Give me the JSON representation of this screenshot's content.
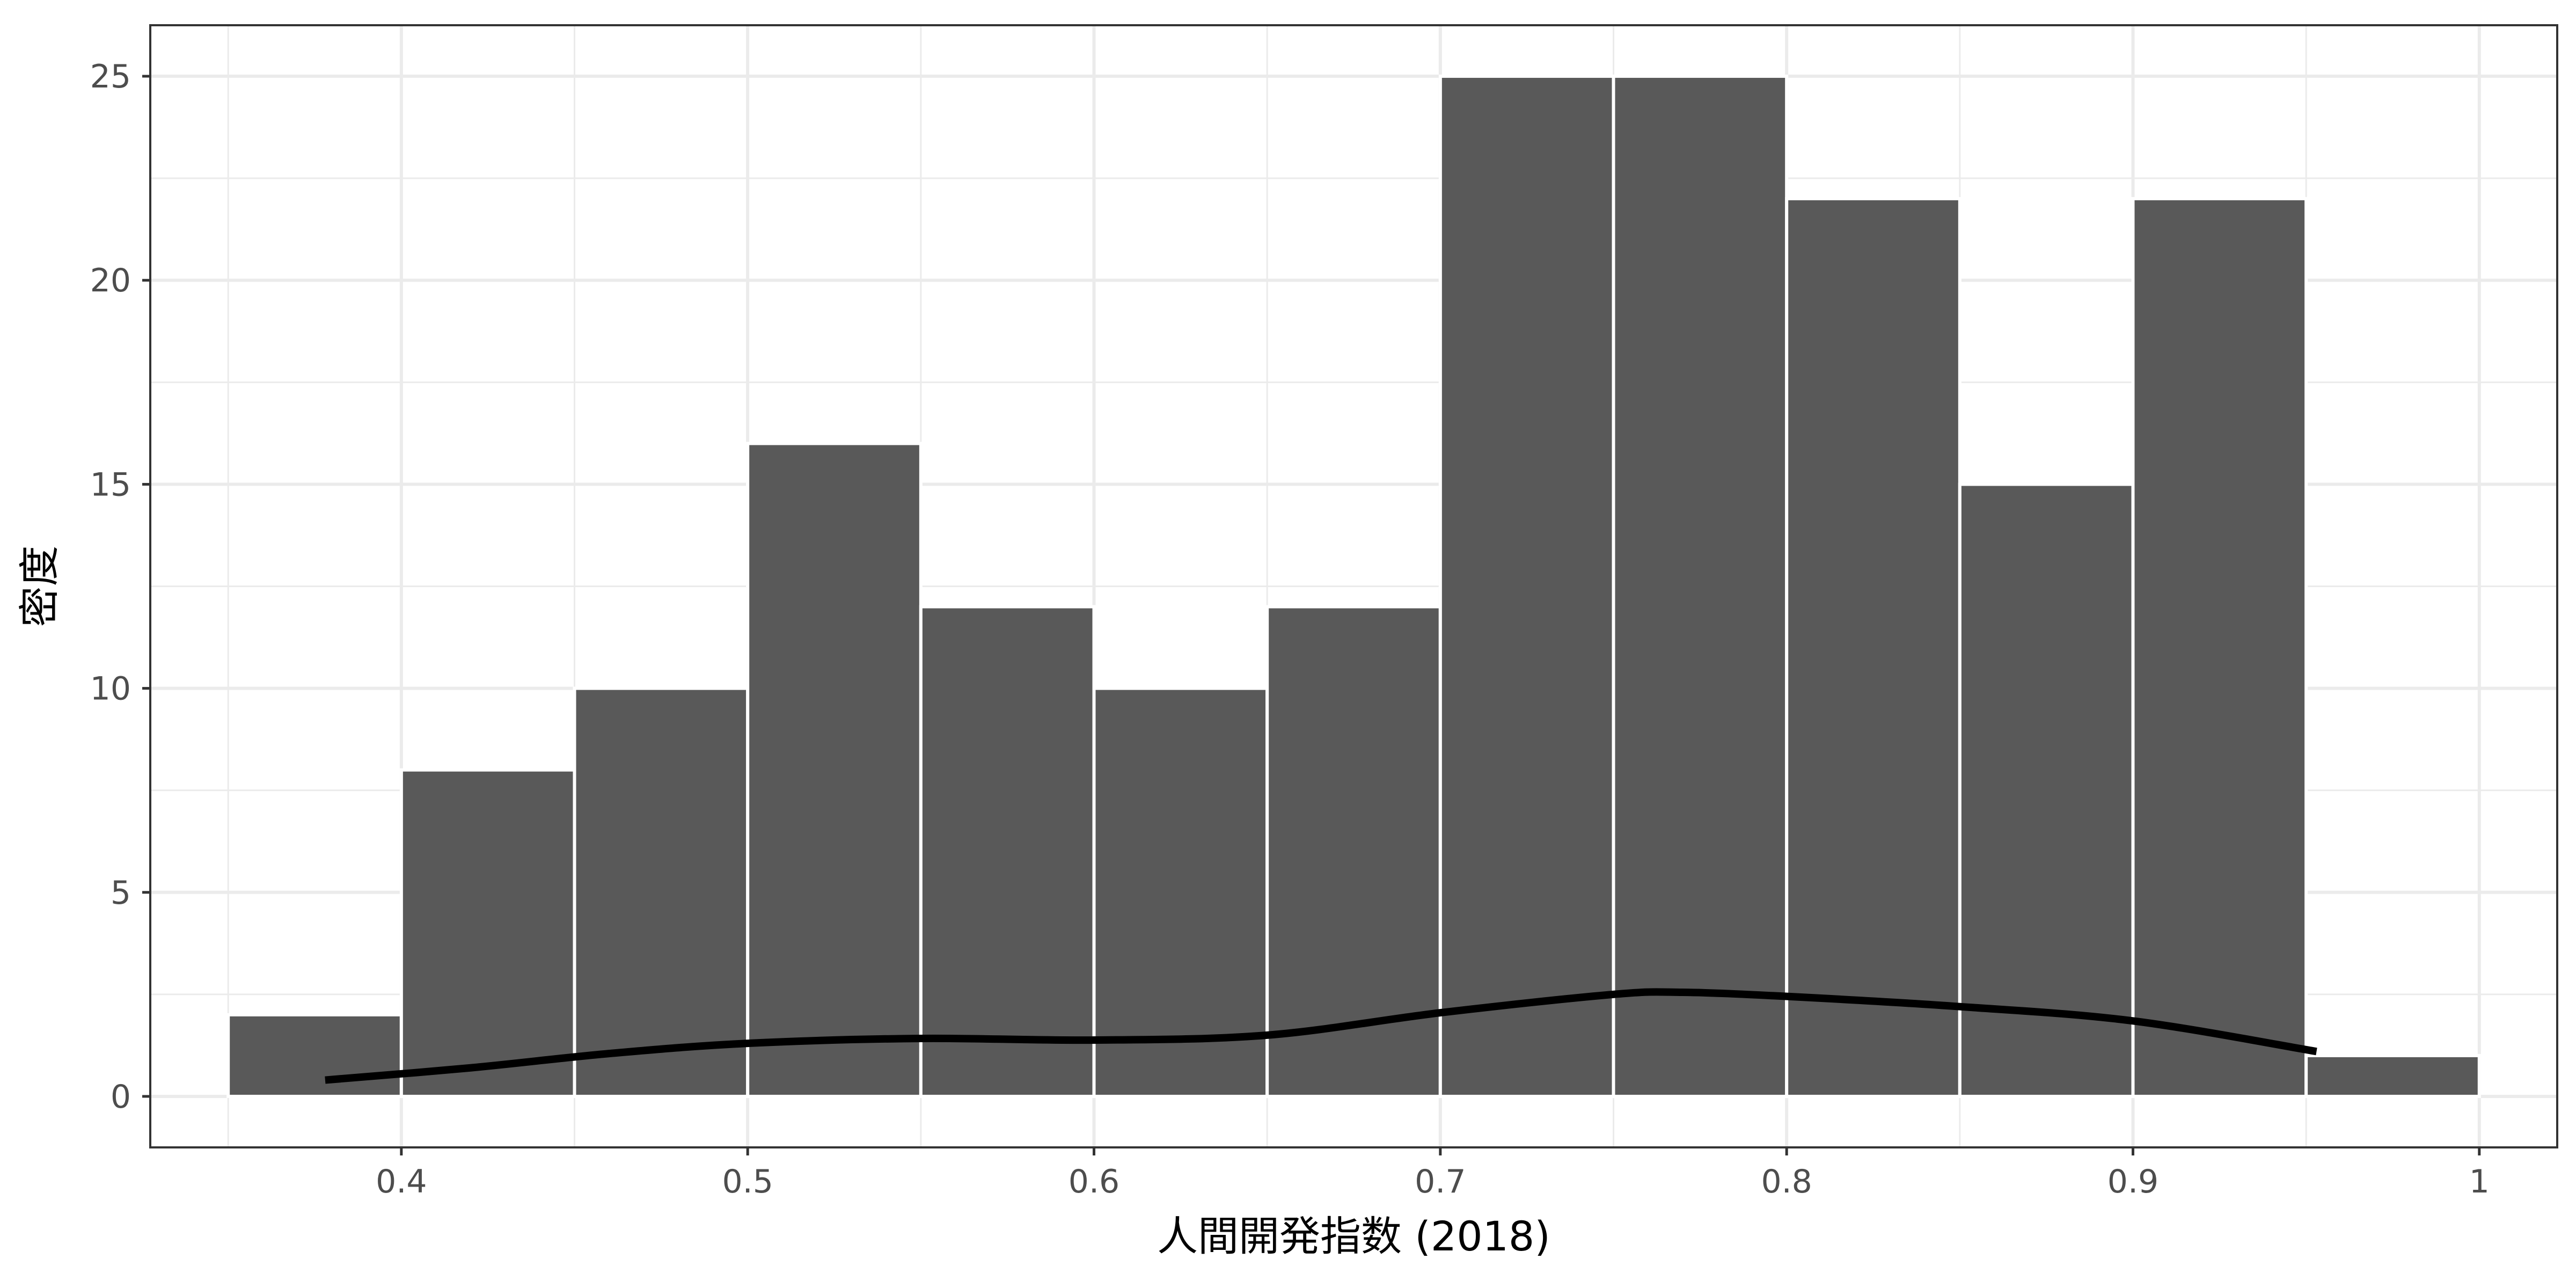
{
  "chart_data": {
    "type": "bar",
    "bin_edges": [
      0.35,
      0.4,
      0.45,
      0.5,
      0.55,
      0.6,
      0.65,
      0.7,
      0.75,
      0.8,
      0.85,
      0.9,
      0.95,
      1.0
    ],
    "values": [
      2,
      8,
      10,
      16,
      12,
      10,
      12,
      25,
      25,
      22,
      15,
      22,
      1
    ],
    "density_curve": {
      "x": [
        0.378,
        0.42,
        0.46,
        0.5,
        0.55,
        0.6,
        0.65,
        0.7,
        0.75,
        0.77,
        0.8,
        0.85,
        0.9,
        0.953
      ],
      "y": [
        0.4,
        0.7,
        1.05,
        1.3,
        1.42,
        1.38,
        1.5,
        2.05,
        2.5,
        2.55,
        2.45,
        2.2,
        1.85,
        1.1
      ]
    },
    "xlabel": "人間開発指数 (2018)",
    "ylabel": "密度",
    "xlim": [
      0.3275,
      1.0225
    ],
    "ylim": [
      -1.25,
      26.25
    ],
    "x_ticks": [
      0.4,
      0.5,
      0.6,
      0.7,
      0.8,
      0.9,
      1
    ],
    "x_tick_labels": [
      "0.4",
      "0.5",
      "0.6",
      "0.7",
      "0.8",
      "0.9",
      "1"
    ],
    "y_ticks": [
      0,
      5,
      10,
      15,
      20,
      25
    ],
    "y_tick_labels": [
      "0",
      "5",
      "10",
      "15",
      "20",
      "25"
    ],
    "grid": true,
    "colors": {
      "bar": "#595959",
      "bar_edge": "#ffffff",
      "curve": "#000000",
      "grid": "#ebebeb",
      "panel_border": "#333333"
    }
  }
}
